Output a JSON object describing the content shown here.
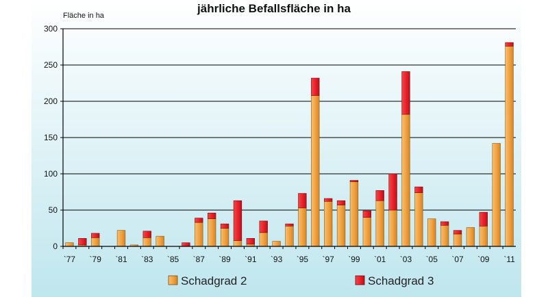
{
  "chart_data": {
    "type": "bar",
    "stacked": true,
    "title": "jährliche Befallsfläche in ha",
    "ylabel": "Fläche in ha",
    "ylim": [
      0,
      300
    ],
    "y_ticks": [
      0,
      50,
      100,
      150,
      200,
      250,
      300
    ],
    "grid": true,
    "legend_position": "bottom",
    "categories": [
      "1977",
      "1978",
      "1979",
      "1980",
      "1981",
      "1982",
      "1983",
      "1984",
      "1985",
      "1986",
      "1987",
      "1988",
      "1989",
      "1990",
      "1991",
      "1992",
      "1993",
      "1994",
      "1995",
      "1996",
      "1997",
      "1998",
      "1999",
      "2000",
      "2001",
      "2002",
      "2003",
      "2004",
      "2005",
      "2006",
      "2007",
      "2008",
      "2009",
      "2010",
      "2011"
    ],
    "x_tick_labels": [
      "`77",
      "",
      "`79",
      "",
      "`81",
      "",
      "`83",
      "",
      "`85",
      "",
      "`87",
      "",
      "`89",
      "",
      "`91",
      "",
      "`93",
      "",
      "`95",
      "",
      "`97",
      "",
      "`99",
      "",
      "`01",
      "",
      "`03",
      "",
      "`05",
      "",
      "`07",
      "",
      "`09",
      "",
      "`11"
    ],
    "series": [
      {
        "name": "Schadgrad 2",
        "color": "#F0A040",
        "values": [
          5,
          2,
          12,
          0,
          22,
          2,
          12,
          14,
          0,
          0,
          33,
          38,
          25,
          8,
          3,
          19,
          7,
          28,
          53,
          208,
          62,
          57,
          89,
          40,
          63,
          50,
          182,
          74,
          38,
          29,
          17,
          26,
          28,
          142,
          276
        ]
      },
      {
        "name": "Schadgrad 3",
        "color": "#E8202A",
        "values": [
          0,
          9,
          6,
          0,
          0,
          0,
          9,
          0,
          0,
          5,
          6,
          8,
          6,
          55,
          8,
          16,
          0,
          3,
          20,
          24,
          4,
          6,
          2,
          9,
          14,
          50,
          59,
          8,
          0,
          5,
          5,
          0,
          19,
          0,
          5
        ]
      }
    ]
  },
  "legend": {
    "items": [
      {
        "label": "Schadgrad 2",
        "color": "#F0A040"
      },
      {
        "label": "Schadgrad 3",
        "color": "#E8202A"
      }
    ]
  },
  "colors": {
    "plot_bg_top": "#FFFFFF",
    "plot_bg_bottom": "#BFE6EE",
    "gridline": "#000000"
  }
}
